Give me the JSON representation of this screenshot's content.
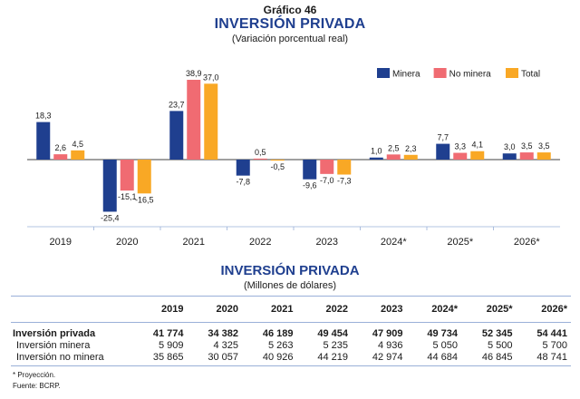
{
  "header": {
    "label": "Gráfico 46",
    "title": "INVERSIÓN PRIVADA",
    "subtitle": "(Variación porcentual real)"
  },
  "chart_data": {
    "type": "bar",
    "categories": [
      "2019",
      "2020",
      "2021",
      "2022",
      "2023",
      "2024*",
      "2025*",
      "2026*"
    ],
    "series": [
      {
        "name": "Minera",
        "color": "#1f3f8f",
        "values": [
          18.3,
          -25.4,
          23.7,
          -7.8,
          -9.6,
          1.0,
          7.7,
          3.0
        ],
        "labels": [
          "18,3",
          "-25,4",
          "23,7",
          "-7,8",
          "-9,6",
          "1,0",
          "7,7",
          "3,0"
        ]
      },
      {
        "name": "No minera",
        "color": "#f06b72",
        "values": [
          2.6,
          -15.1,
          38.9,
          0.5,
          -7.0,
          2.5,
          3.3,
          3.5
        ],
        "labels": [
          "2,6",
          "-15,1",
          "38,9",
          "0,5",
          "-7,0",
          "2,5",
          "3,3",
          "3,5"
        ]
      },
      {
        "name": "Total",
        "color": "#f9a825",
        "values": [
          4.5,
          -16.5,
          37.0,
          -0.5,
          -7.3,
          2.3,
          4.1,
          3.5
        ],
        "labels": [
          "4,5",
          "-16,5",
          "37,0",
          "-0,5",
          "-7,3",
          "2,3",
          "4,1",
          "3,5"
        ]
      }
    ],
    "ylim": [
      -30,
      42
    ],
    "legend": "top-right",
    "grid": false
  },
  "table": {
    "title": "INVERSIÓN PRIVADA",
    "subtitle": "(Millones de dólares)",
    "columns": [
      "2019",
      "2020",
      "2021",
      "2022",
      "2023",
      "2024*",
      "2025*",
      "2026*"
    ],
    "rows": [
      {
        "label": "Inversión privada",
        "values": [
          "41 774",
          "34 382",
          "46 189",
          "49 454",
          "47 909",
          "49 734",
          "52 345",
          "54 441"
        ]
      },
      {
        "label": "Inversión minera",
        "values": [
          "5 909",
          "4 325",
          "5 263",
          "5 235",
          "4 936",
          "5 050",
          "5 500",
          "5 700"
        ]
      },
      {
        "label": "Inversión no minera",
        "values": [
          "35 865",
          "30 057",
          "40 926",
          "44 219",
          "42 974",
          "44 684",
          "46 845",
          "48 741"
        ]
      }
    ]
  },
  "notes": {
    "projection": "* Proyección.",
    "source": "Fuente: BCRP."
  }
}
